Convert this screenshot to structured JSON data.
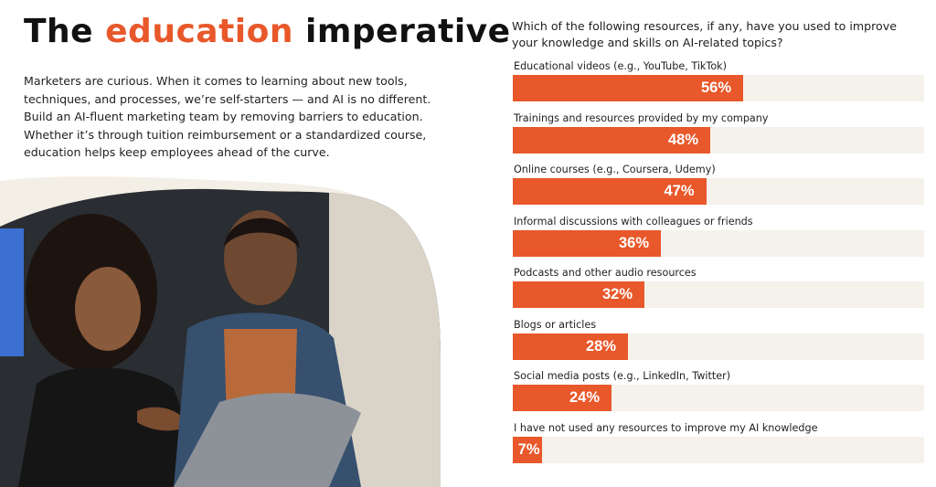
{
  "header": {
    "title_part1": "The ",
    "title_accent": "education",
    "title_part2": " imperative",
    "accent_color": "#e8582a"
  },
  "body": {
    "paragraph": "Marketers are curious. When it comes to learning about new tools, techniques, and processes, we’re self-starters — and AI is no different. Build an AI-fluent marketing team by removing barriers to education. Whether it’s through tuition reimbursement or a standardized course, education helps keep employees ahead of the curve."
  },
  "chart_data": {
    "type": "bar",
    "orientation": "horizontal",
    "title": "Which of the following resources, if any, have you used to improve your knowledge and skills on AI-related topics?",
    "categories": [
      "Educational videos (e.g., YouTube, TikTok)",
      "Trainings and resources provided by my company",
      "Online courses (e.g., Coursera, Udemy)",
      "Informal discussions with colleagues or friends",
      "Podcasts and other audio resources",
      "Blogs or articles",
      "Social media posts (e.g., LinkedIn, Twitter)",
      "I have not used any resources to improve my AI knowledge"
    ],
    "values": [
      56,
      48,
      47,
      36,
      32,
      28,
      24,
      7
    ],
    "value_labels": [
      "56%",
      "48%",
      "47%",
      "36%",
      "32%",
      "28%",
      "24%",
      "7%"
    ],
    "unit": "%",
    "xlim": [
      0,
      100
    ],
    "grid": false,
    "legend": "none",
    "bar_color": "#e8582a",
    "track_color": "#f5f2ec"
  }
}
